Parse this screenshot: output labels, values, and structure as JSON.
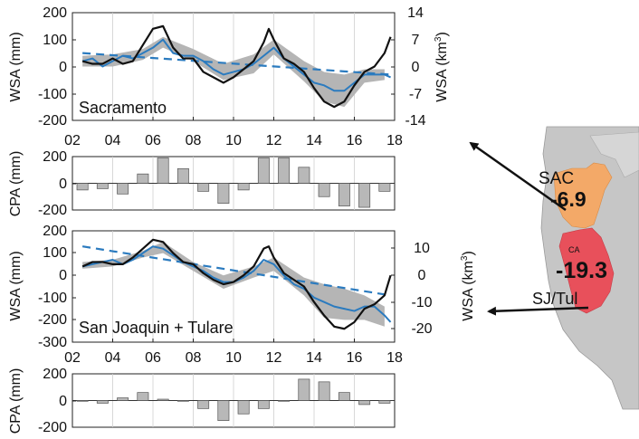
{
  "chart_data": [
    {
      "type": "line",
      "panel_label": "Sacramento",
      "xlabel": "",
      "ylabel": "WSA (mm)",
      "ylabel2": "WSA (km",
      "ylabel2_sup": "3",
      "ylabel2_close": ")",
      "xlim": [
        2002.0,
        2018.0
      ],
      "ylim": [
        -200,
        200
      ],
      "yticks": [
        "200",
        "100",
        "0",
        "-100",
        "-200"
      ],
      "y2ticks": [
        "14",
        "7",
        "0",
        "-7",
        "-14"
      ],
      "xticks": [
        "02",
        "04",
        "06",
        "08",
        "10",
        "12",
        "14",
        "16",
        "18"
      ],
      "series": [
        {
          "x": [
            2002.5,
            2003.0,
            2003.5,
            2004.0,
            2004.5,
            2005.0,
            2005.5,
            2006.0,
            2006.5,
            2007.0,
            2007.5,
            2008.0,
            2008.5,
            2009.0,
            2009.5,
            2010.0,
            2010.5,
            2011.0,
            2011.5,
            2011.75,
            2012.0,
            2012.5,
            2013.0,
            2013.5,
            2014.0,
            2014.5,
            2015.0,
            2015.5,
            2016.0,
            2016.5,
            2017.0,
            2017.5,
            2017.8
          ],
          "values": [
            20,
            10,
            10,
            30,
            10,
            20,
            80,
            140,
            150,
            70,
            30,
            30,
            -20,
            -40,
            -60,
            -40,
            -10,
            20,
            90,
            140,
            100,
            30,
            10,
            -20,
            -80,
            -130,
            -150,
            -130,
            -70,
            -20,
            0,
            50,
            110
          ]
        },
        {
          "x": [
            2002.5,
            2003.0,
            2003.5,
            2004.0,
            2004.5,
            2005.0,
            2005.5,
            2006.0,
            2006.5,
            2007.0,
            2007.5,
            2008.0,
            2008.5,
            2009.0,
            2009.5,
            2010.0,
            2010.5,
            2011.0,
            2011.5,
            2012.0,
            2012.5,
            2013.0,
            2013.5,
            2014.0,
            2014.5,
            2015.0,
            2015.5,
            2016.0,
            2016.5,
            2017.0,
            2017.5,
            2017.8
          ],
          "values": [
            20,
            30,
            0,
            20,
            40,
            30,
            50,
            70,
            100,
            50,
            40,
            40,
            20,
            -10,
            -30,
            -20,
            -10,
            10,
            40,
            70,
            30,
            0,
            -30,
            -60,
            -70,
            -90,
            -90,
            -60,
            -30,
            -30,
            -30,
            -40
          ]
        },
        {
          "x": [
            2002.5,
            2017.8
          ],
          "values": [
            50,
            -30
          ]
        }
      ],
      "band": {
        "x": [
          2002.5,
          2004.0,
          2005.5,
          2006.5,
          2008.0,
          2009.5,
          2011.0,
          2012.0,
          2013.5,
          2014.5,
          2015.5,
          2016.5,
          2017.5
        ],
        "upper": [
          40,
          45,
          65,
          110,
          65,
          10,
          45,
          100,
          20,
          -20,
          -30,
          -10,
          -10
        ],
        "lower": [
          0,
          0,
          25,
          70,
          20,
          -50,
          -25,
          45,
          -55,
          -130,
          -150,
          -60,
          -50
        ]
      }
    },
    {
      "type": "bar",
      "xlabel": "",
      "ylabel": "CPA (mm)",
      "ylim": [
        -200,
        200
      ],
      "yticks": [
        "200",
        "0",
        "-200"
      ],
      "x": [
        2002.5,
        2003.5,
        2004.5,
        2005.5,
        2006.5,
        2007.5,
        2008.5,
        2009.5,
        2010.5,
        2011.5,
        2012.5,
        2013.5,
        2014.5,
        2015.5,
        2016.5,
        2017.5
      ],
      "values": [
        -50,
        -40,
        -80,
        70,
        190,
        110,
        -60,
        -150,
        -50,
        190,
        190,
        120,
        -100,
        -170,
        -180,
        -60
      ]
    },
    {
      "type": "line",
      "panel_label": "San Joaquin + Tulare",
      "xlabel": "",
      "ylabel": "WSA (mm)",
      "ylabel2": "WSA (km",
      "ylabel2_sup": "3",
      "ylabel2_close": ")",
      "xlim": [
        2002.0,
        2018.0
      ],
      "ylim": [
        -300,
        200
      ],
      "yticks": [
        "200",
        "100",
        "0",
        "-100",
        "-200",
        "-300"
      ],
      "y2ticks": [
        "10",
        "0",
        "-10",
        "-20"
      ],
      "xticks": [
        "02",
        "04",
        "06",
        "08",
        "10",
        "12",
        "14",
        "16",
        "18"
      ],
      "series": [
        {
          "x": [
            2002.5,
            2003.0,
            2003.5,
            2004.0,
            2004.5,
            2005.0,
            2005.5,
            2006.0,
            2006.5,
            2007.0,
            2007.5,
            2008.0,
            2008.5,
            2009.0,
            2009.5,
            2010.0,
            2010.5,
            2011.0,
            2011.5,
            2011.75,
            2012.0,
            2012.5,
            2013.0,
            2013.5,
            2014.0,
            2014.5,
            2015.0,
            2015.5,
            2016.0,
            2016.5,
            2017.0,
            2017.5,
            2017.8
          ],
          "values": [
            40,
            60,
            60,
            50,
            50,
            80,
            120,
            160,
            150,
            100,
            60,
            50,
            10,
            -20,
            -40,
            -30,
            0,
            40,
            120,
            130,
            80,
            10,
            -20,
            -50,
            -120,
            -180,
            -230,
            -240,
            -210,
            -150,
            -130,
            -90,
            0
          ]
        },
        {
          "x": [
            2002.5,
            2003.0,
            2003.5,
            2004.0,
            2004.5,
            2005.0,
            2005.5,
            2006.0,
            2006.5,
            2007.0,
            2007.5,
            2008.0,
            2008.5,
            2009.0,
            2009.5,
            2010.0,
            2010.5,
            2011.0,
            2011.5,
            2012.0,
            2012.5,
            2013.0,
            2013.5,
            2014.0,
            2014.5,
            2015.0,
            2015.5,
            2016.0,
            2016.5,
            2017.0,
            2017.5,
            2017.8
          ],
          "values": [
            40,
            50,
            60,
            70,
            50,
            70,
            100,
            130,
            120,
            90,
            60,
            40,
            20,
            -10,
            -30,
            -30,
            -10,
            20,
            70,
            50,
            0,
            -40,
            -60,
            -100,
            -120,
            -140,
            -150,
            -160,
            -140,
            -140,
            -180,
            -210
          ]
        },
        {
          "x": [
            2002.5,
            2017.8
          ],
          "values": [
            130,
            -90
          ]
        }
      ],
      "band": {
        "x": [
          2002.5,
          2004.0,
          2005.5,
          2006.5,
          2008.0,
          2009.5,
          2011.0,
          2012.0,
          2013.5,
          2014.5,
          2015.5,
          2016.5,
          2017.5
        ],
        "upper": [
          60,
          70,
          110,
          150,
          60,
          0,
          40,
          80,
          -10,
          -40,
          -60,
          -90,
          -140
        ],
        "lower": [
          30,
          40,
          80,
          100,
          20,
          -60,
          -10,
          20,
          -90,
          -190,
          -200,
          -200,
          -230
        ]
      }
    },
    {
      "type": "bar",
      "xlabel": "",
      "ylabel": "CPA (mm)",
      "ylim": [
        -200,
        200
      ],
      "yticks": [
        "200",
        "0",
        "-200"
      ],
      "x": [
        2002.5,
        2003.5,
        2004.5,
        2005.5,
        2006.5,
        2007.5,
        2008.5,
        2009.5,
        2010.5,
        2011.5,
        2012.5,
        2013.5,
        2014.5,
        2015.5,
        2016.5,
        2017.5
      ],
      "values": [
        0,
        -20,
        20,
        60,
        10,
        0,
        -60,
        -150,
        -100,
        -60,
        0,
        160,
        140,
        60,
        -30,
        -20
      ]
    }
  ],
  "map": {
    "region_labels": [
      "SAC",
      "CA",
      "SJ/Tul"
    ],
    "values": [
      "-6.9",
      "-19.3"
    ],
    "colors": {
      "background": "#c8c8c8",
      "sac": "#f3a968",
      "sjtul": "#e8505b",
      "ocean": "#ffffff"
    }
  },
  "colors": {
    "observed": "#111111",
    "model": "#2b7bbf",
    "trend": "#2b7bbf",
    "band": "#b5b5b5",
    "bars": "#b8b8b8"
  }
}
